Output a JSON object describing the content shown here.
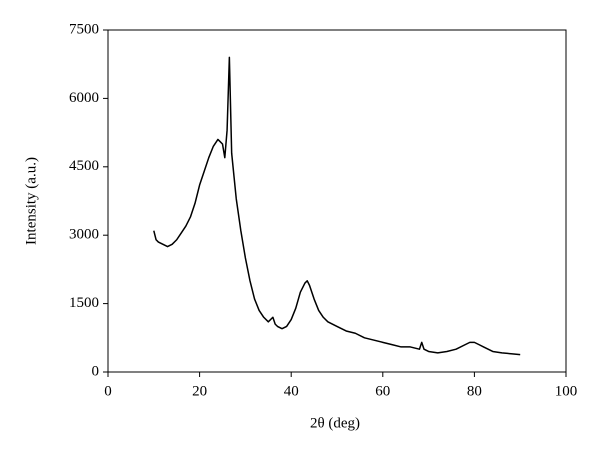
{
  "chart_data": {
    "type": "line",
    "xlabel": "2θ (deg)",
    "ylabel": "Intensity (a.u.)",
    "xlim": [
      0,
      100
    ],
    "xticks": [
      0,
      20,
      40,
      60,
      80,
      100
    ],
    "ylim": [
      0,
      7500
    ],
    "yticks": [
      0,
      1500,
      3000,
      4500,
      6000,
      7500
    ],
    "series": [
      {
        "color": "#000000",
        "x": [
          10,
          10.5,
          11,
          12,
          13,
          14,
          15,
          16,
          17,
          18,
          19,
          20,
          21,
          22,
          23,
          24,
          25,
          25.5,
          26,
          26.5,
          27,
          27.5,
          28,
          29,
          30,
          31,
          32,
          33,
          34,
          35,
          36,
          36.5,
          37,
          38,
          39,
          40,
          41,
          42,
          43,
          43.5,
          44,
          45,
          46,
          47,
          48,
          50,
          52,
          54,
          56,
          58,
          60,
          62,
          64,
          66,
          68,
          68.5,
          69,
          70,
          72,
          74,
          76,
          78,
          79,
          80,
          81,
          82,
          84,
          86,
          88,
          90
        ],
        "values": [
          3100,
          2900,
          2850,
          2800,
          2750,
          2800,
          2900,
          3050,
          3200,
          3400,
          3700,
          4100,
          4400,
          4700,
          4950,
          5100,
          5000,
          4700,
          5300,
          6900,
          4800,
          4300,
          3800,
          3100,
          2500,
          2000,
          1600,
          1350,
          1200,
          1100,
          1200,
          1050,
          1000,
          950,
          1000,
          1150,
          1400,
          1750,
          1950,
          2000,
          1900,
          1600,
          1350,
          1200,
          1100,
          1000,
          900,
          850,
          750,
          700,
          650,
          600,
          550,
          550,
          500,
          650,
          500,
          450,
          420,
          450,
          500,
          600,
          650,
          650,
          600,
          550,
          450,
          420,
          400,
          380
        ]
      }
    ]
  }
}
